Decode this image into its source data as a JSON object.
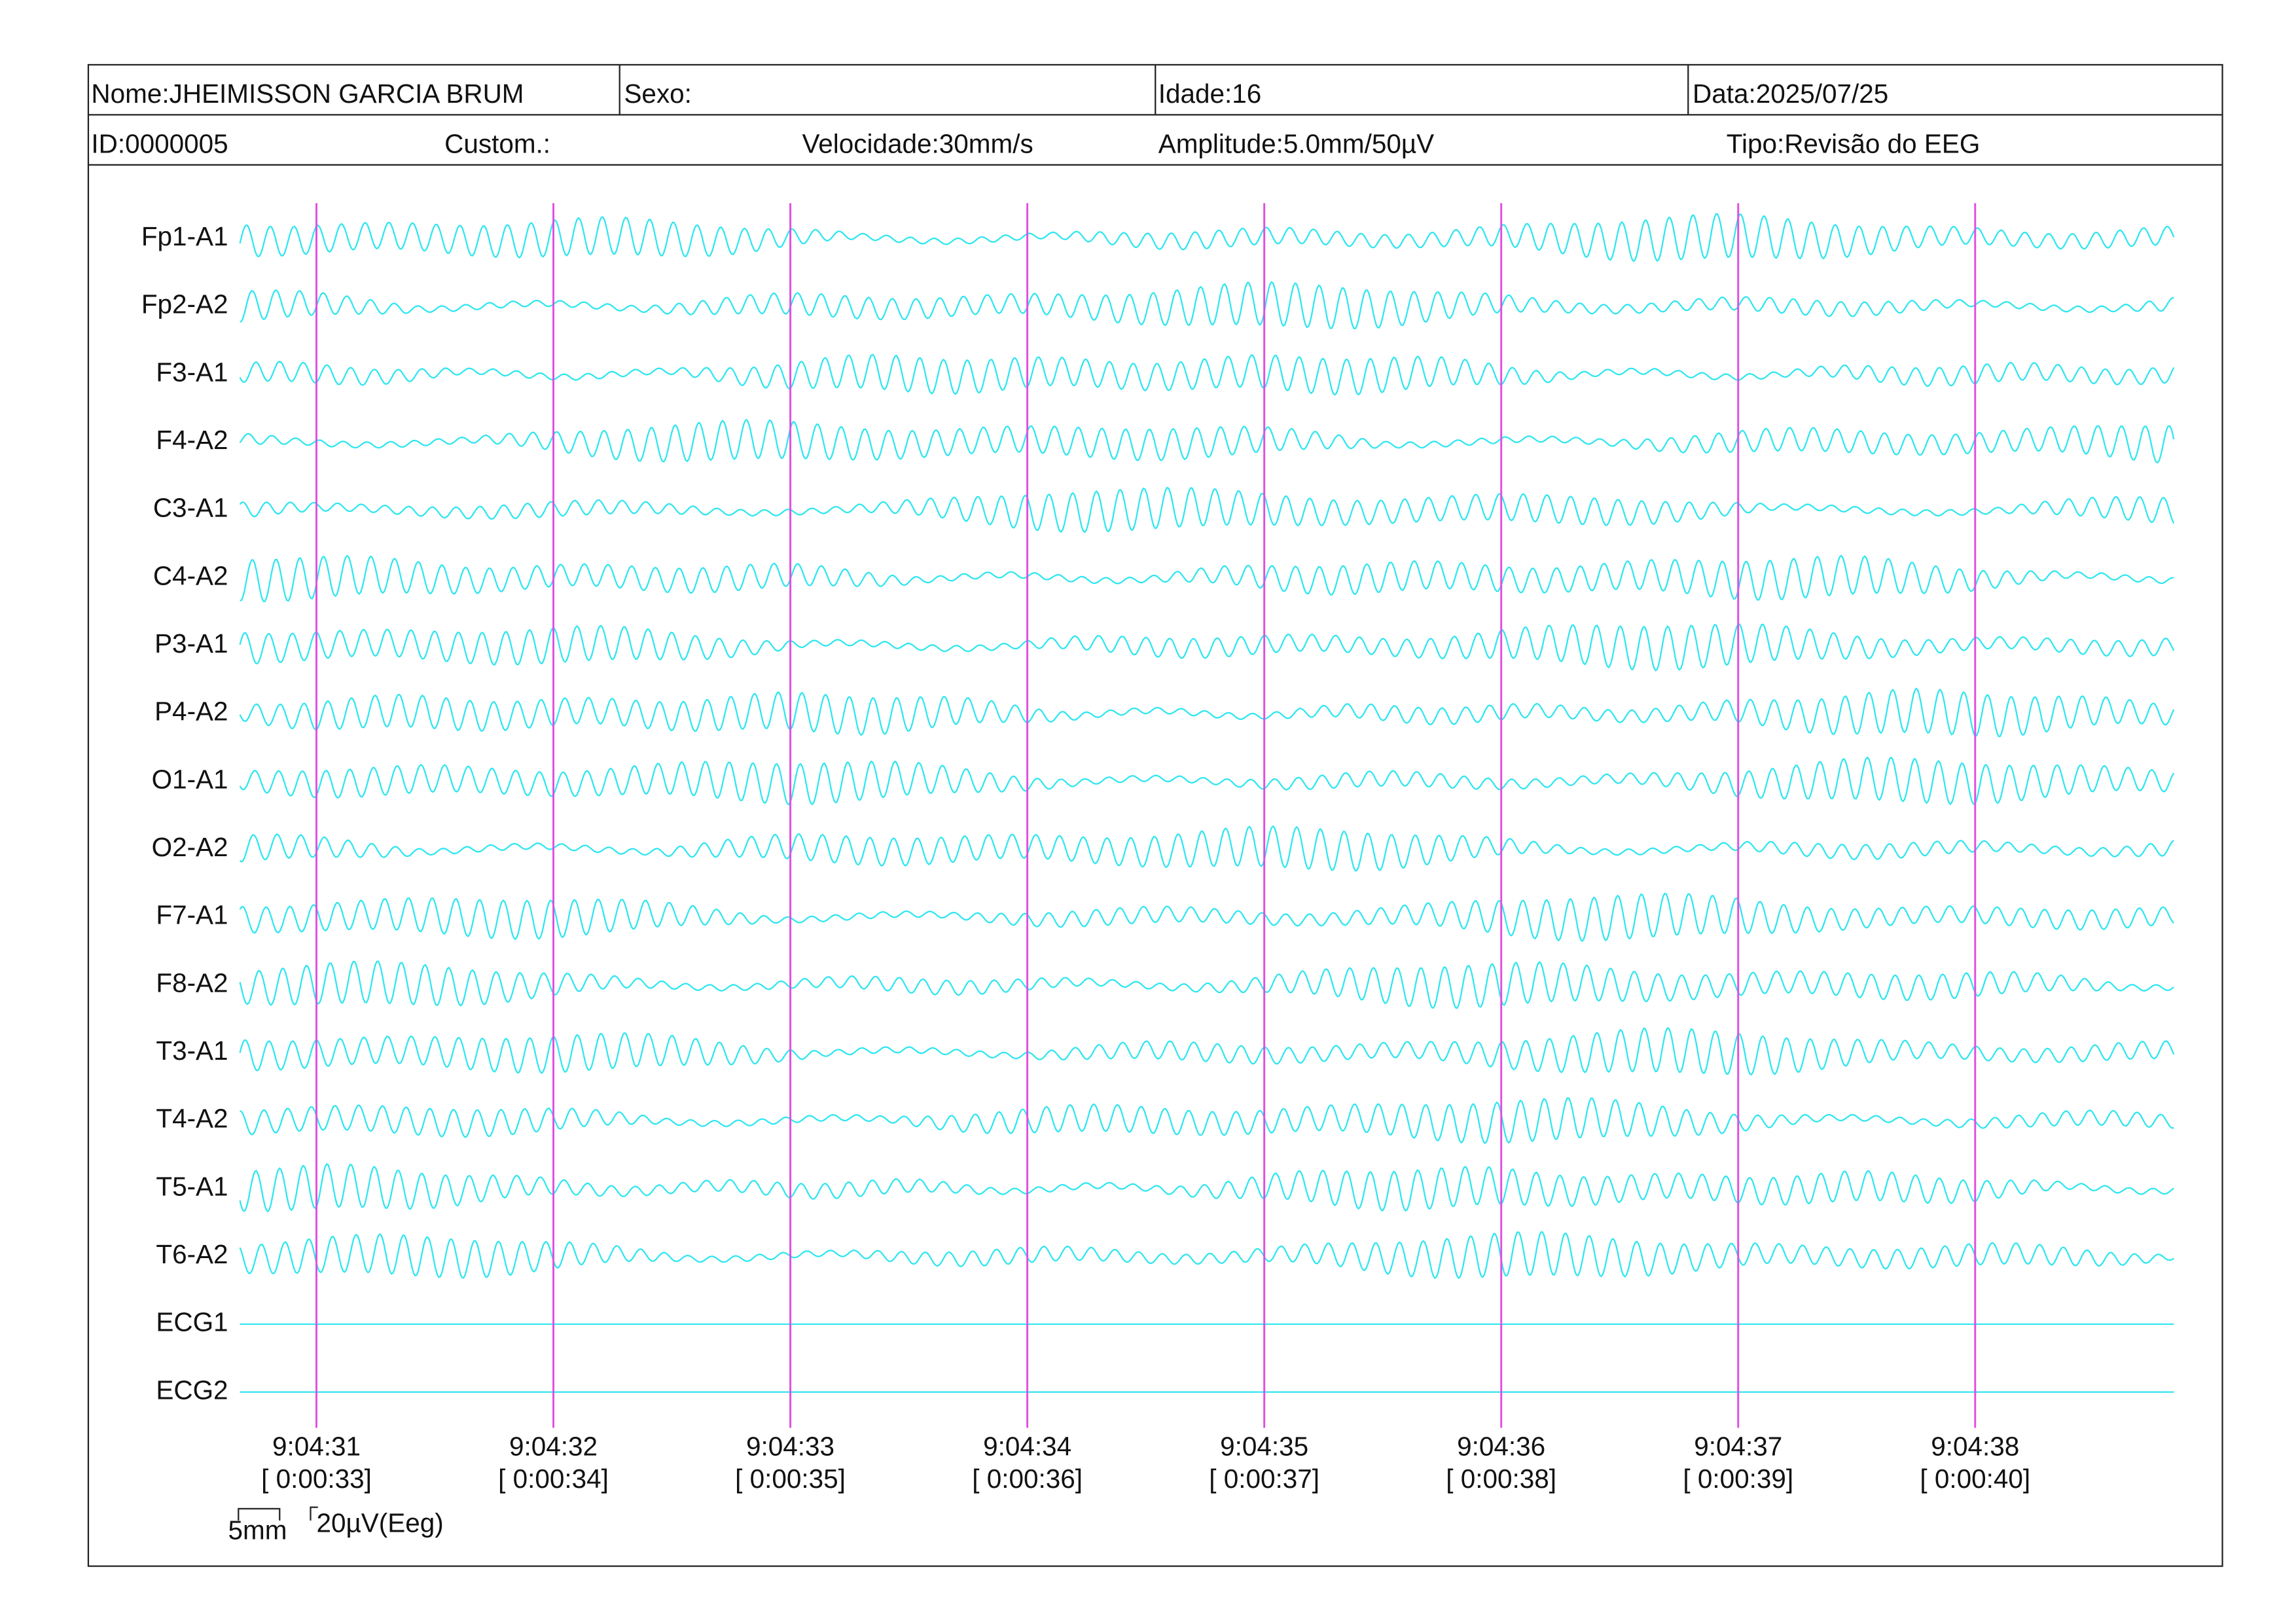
{
  "header": {
    "name": "Nome:JHEIMISSON GARCIA BRUM",
    "sex": "Sexo:",
    "age": "Idade:16",
    "date": "Data:2025/07/25",
    "id": "ID:0000005",
    "custom": "Custom.:",
    "speed": "Velocidade:30mm/s",
    "amplitude": "Amplitude:5.0mm/50µV",
    "type": "Tipo:Revisão do EEG"
  },
  "channels": [
    "Fp1-A1",
    "Fp2-A2",
    "F3-A1",
    "F4-A2",
    "C3-A1",
    "C4-A2",
    "P3-A1",
    "P4-A2",
    "O1-A1",
    "O2-A2",
    "F7-A1",
    "F8-A2",
    "T3-A1",
    "T4-A2",
    "T5-A1",
    "T6-A2",
    "ECG1",
    "ECG2"
  ],
  "time_marks": [
    {
      "time": "9:04:31",
      "elapsed": "[ 0:00:33]"
    },
    {
      "time": "9:04:32",
      "elapsed": "[ 0:00:34]"
    },
    {
      "time": "9:04:33",
      "elapsed": "[ 0:00:35]"
    },
    {
      "time": "9:04:34",
      "elapsed": "[ 0:00:36]"
    },
    {
      "time": "9:04:35",
      "elapsed": "[ 0:00:37]"
    },
    {
      "time": "9:04:36",
      "elapsed": "[ 0:00:38]"
    },
    {
      "time": "9:04:37",
      "elapsed": "[ 0:00:39]"
    },
    {
      "time": "9:04:38",
      "elapsed": "[ 0:00:40]"
    }
  ],
  "scale": {
    "time": "5mm",
    "amplitude": "20µV(Eeg)"
  }
}
